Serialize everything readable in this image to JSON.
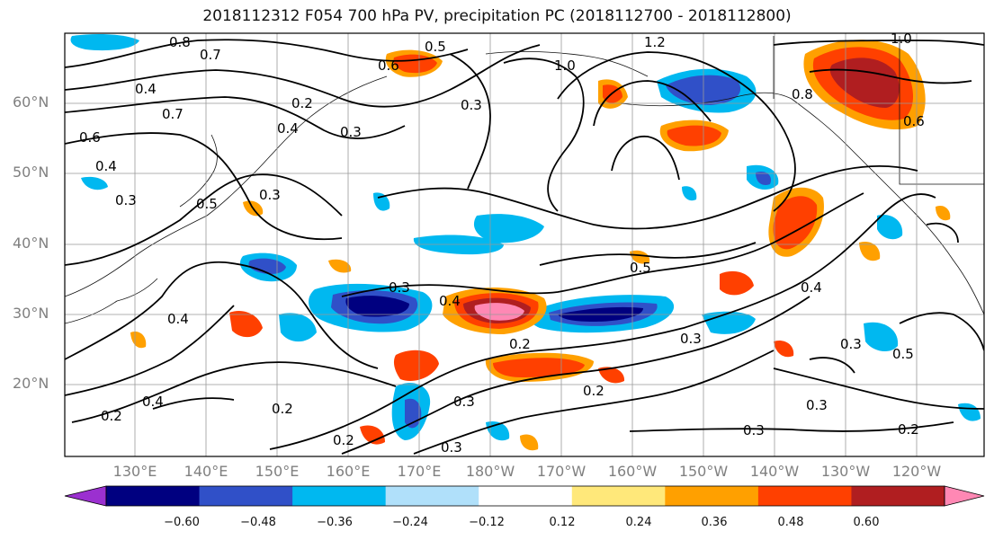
{
  "title": "2018112312 F054 700 hPa PV, precipitation PC (2018112700 - 2018112800)",
  "lat_labels": [
    "60°N",
    "50°N",
    "40°N",
    "30°N",
    "20°N"
  ],
  "lon_labels": [
    "130°E",
    "140°E",
    "150°E",
    "160°E",
    "170°E",
    "180°W",
    "170°W",
    "160°W",
    "150°W",
    "140°W",
    "130°W",
    "120°W"
  ],
  "contour_labels": [
    "0.8",
    "0.7",
    "0.5",
    "0.6",
    "1.2",
    "1.0",
    "0.4",
    "0.7",
    "0.2",
    "0.4",
    "0.3",
    "0.6",
    "0.4",
    "0.3",
    "0.5",
    "0.3",
    "0.8",
    "0.6",
    "0.3",
    "0.5",
    "0.4",
    "0.3",
    "0.2",
    "0.3",
    "0.4",
    "0.4",
    "0.3",
    "0.5",
    "0.2",
    "0.4",
    "0.2",
    "0.3",
    "0.3",
    "0.2",
    "0.2",
    "0.3",
    "0.3",
    "0.2",
    "1.0"
  ],
  "colorbar": {
    "colors": [
      "#9b30d0",
      "#000080",
      "#3050c8",
      "#00b8f0",
      "#b0e0fa",
      "#ffffff",
      "#ffe87a",
      "#ffa000",
      "#ff4000",
      "#b01e20",
      "#ff88b4"
    ],
    "tick_labels": [
      "−0.60",
      "−0.48",
      "−0.36",
      "−0.24",
      "−0.12",
      "0.12",
      "0.24",
      "0.36",
      "0.48",
      "0.60"
    ]
  }
}
